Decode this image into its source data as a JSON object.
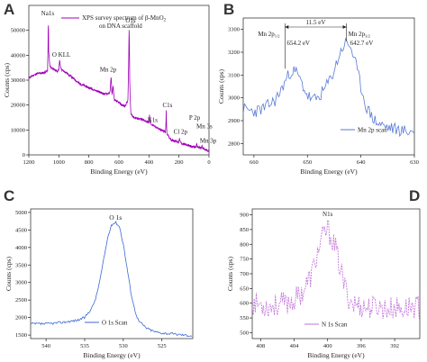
{
  "panels": [
    {
      "id": "A",
      "label": "A"
    },
    {
      "id": "B",
      "label": "B"
    },
    {
      "id": "C",
      "label": "C"
    },
    {
      "id": "D",
      "label": "D"
    }
  ],
  "chart_data": [
    {
      "id": "A",
      "type": "line",
      "title": "XPS survey spectrum of β-MnO2 on DNA scaffold",
      "legend": {
        "text": "XPS survey spectrum of β-MnO",
        "sub": "2",
        "line2": "on DNA scaffold",
        "placement": "top-center",
        "color": "#a000b8"
      },
      "xlabel": "Binding Energy (eV)",
      "ylabel": "Counts (cps)",
      "xlim": [
        1200,
        0
      ],
      "ylim": [
        0,
        60000
      ],
      "xreverse": true,
      "xticks": [
        1200,
        1000,
        800,
        600,
        400,
        200,
        0
      ],
      "yticks": [
        0,
        10000,
        20000,
        30000,
        40000,
        50000
      ],
      "color": "#a000b8",
      "series": [
        {
          "x": [
            1200,
            1150,
            1100,
            1085,
            1075,
            1072,
            1070,
            1068,
            1060,
            1040,
            1010,
            1000,
            995,
            990,
            980,
            950,
            920,
            900,
            860,
            820,
            780,
            740,
            700,
            680,
            660,
            655,
            652,
            650,
            648,
            645,
            642,
            640,
            630,
            600,
            580,
            560,
            540,
            535,
            532,
            530,
            528,
            525,
            520,
            500,
            470,
            440,
            420,
            400,
            398,
            396,
            394,
            392,
            380,
            350,
            320,
            300,
            290,
            287,
            285,
            283,
            280,
            270,
            250,
            220,
            200,
            199,
            197,
            195,
            180,
            150,
            120,
            90,
            84,
            82,
            80,
            70,
            60,
            50,
            49,
            47,
            45,
            40,
            30,
            20,
            10,
            0
          ],
          "y": [
            31000,
            32500,
            33000,
            33500,
            34000,
            45000,
            55000,
            42000,
            35500,
            34500,
            33500,
            34500,
            38000,
            35500,
            34000,
            33000,
            31500,
            30500,
            28500,
            27500,
            26500,
            25500,
            24500,
            24500,
            25000,
            29000,
            32000,
            29000,
            25000,
            24500,
            26000,
            28000,
            22000,
            21000,
            20000,
            19500,
            22000,
            38000,
            52000,
            42000,
            30000,
            22000,
            16500,
            15000,
            14500,
            14000,
            13500,
            13000,
            14500,
            16000,
            14500,
            13000,
            12000,
            11000,
            10000,
            9500,
            9000,
            12000,
            18000,
            12000,
            8500,
            7500,
            6000,
            5500,
            5000,
            6000,
            7000,
            5500,
            4500,
            4000,
            3500,
            3000,
            3800,
            4500,
            3500,
            3000,
            2800,
            2600,
            3400,
            4000,
            3000,
            2500,
            2200,
            2000,
            1800,
            1600
          ]
        }
      ],
      "annotations": [
        {
          "text": "Na1s",
          "x": 1070,
          "y": 55000
        },
        {
          "text": "O KLL",
          "x": 985,
          "y": 38000
        },
        {
          "text": "Mn 2p",
          "x": 655,
          "y": 32000
        },
        {
          "text": "O1s",
          "x": 532,
          "y": 52000
        },
        {
          "text": "C1s",
          "x": 285,
          "y": 18000
        },
        {
          "text": "N1s",
          "x": 398,
          "y": 16000
        },
        {
          "text": "Cl 2p",
          "x": 200,
          "y": 7500
        },
        {
          "text": "P 2p",
          "x": 133,
          "y": 12000
        },
        {
          "text": "Mn 3s",
          "x": 84,
          "y": 9500
        },
        {
          "text": "Mn 3p",
          "x": 49,
          "y": 4500
        }
      ]
    },
    {
      "id": "B",
      "type": "line",
      "title": "",
      "legend": {
        "text": "Mn 2p scan",
        "placement": "bottom-right",
        "color": "#5a7ad6"
      },
      "xlabel": "Binding Energy (eV)",
      "ylabel": "Counts (cps)",
      "xlim": [
        662,
        630
      ],
      "ylim": [
        2750,
        3350
      ],
      "xreverse": true,
      "xticks": [
        660,
        650,
        640,
        630
      ],
      "yticks": [
        2800,
        2900,
        3000,
        3100,
        3200,
        3300
      ],
      "color": "#5a7ad6",
      "series": [
        {
          "x": [
            662,
            660,
            658,
            656,
            655,
            654,
            653,
            652,
            651,
            650,
            649,
            648,
            647,
            646,
            645,
            644,
            643,
            642,
            641,
            640,
            639,
            638,
            637,
            636,
            635,
            634,
            633,
            632,
            631,
            630
          ],
          "y": [
            2950,
            2940,
            2955,
            2990,
            3030,
            3080,
            3120,
            3110,
            3060,
            3010,
            2990,
            3000,
            3030,
            3070,
            3120,
            3190,
            3240,
            3230,
            3150,
            3050,
            2960,
            2920,
            2890,
            2880,
            2870,
            2865,
            2860,
            2855,
            2852,
            2850
          ]
        }
      ],
      "peaks": [
        {
          "name": "Mn 2p",
          "sub": "1/2",
          "be": "654.2 eV",
          "x": 654.2,
          "y": 3120
        },
        {
          "name": "Mn 2p",
          "sub": "3/2",
          "be": "642.7 eV",
          "x": 642.7,
          "y": 3240
        }
      ],
      "separation": "11.5 eV"
    },
    {
      "id": "C",
      "type": "line",
      "title": "O 1s",
      "legend": {
        "text": "O 1s Scan",
        "placement": "bottom-left",
        "color": "#3a6ad4"
      },
      "xlabel": "Binding Energy (eV)",
      "ylabel": "Counts (cps)",
      "xlim": [
        542,
        521
      ],
      "ylim": [
        1400,
        5100
      ],
      "xreverse": true,
      "xticks": [
        540,
        535,
        530,
        525
      ],
      "yticks": [
        1500,
        2000,
        2500,
        3000,
        3500,
        4000,
        4500,
        5000
      ],
      "color": "#3a6ad4",
      "series": [
        {
          "x": [
            542,
            540,
            538,
            536,
            535,
            534,
            533.5,
            533,
            532.5,
            532,
            531.5,
            531,
            530.5,
            530,
            529.5,
            529,
            528.5,
            528,
            527,
            526,
            525,
            524,
            523,
            522,
            521
          ],
          "y": [
            1820,
            1820,
            1860,
            1920,
            2000,
            2300,
            2600,
            3100,
            3700,
            4300,
            4650,
            4720,
            4600,
            4100,
            3400,
            2700,
            2200,
            1900,
            1700,
            1600,
            1560,
            1540,
            1520,
            1500,
            1480
          ]
        }
      ]
    },
    {
      "id": "D",
      "type": "line",
      "title": "N1s",
      "legend": {
        "text": "N 1s Scan",
        "placement": "bottom-left",
        "color": "#c070d8"
      },
      "xlabel": "Binding Energy (eV)",
      "ylabel": "Counts (cps)",
      "xlim": [
        409,
        389
      ],
      "ylim": [
        480,
        920
      ],
      "xreverse": true,
      "xticks": [
        408,
        404,
        400,
        396,
        392
      ],
      "yticks": [
        500,
        550,
        600,
        650,
        700,
        750,
        800,
        850,
        900
      ],
      "color": "#c070d8",
      "series": [
        {
          "x": [
            409,
            407,
            405,
            404,
            403,
            402,
            401.5,
            401,
            400.5,
            400,
            399.5,
            399,
            398.5,
            398,
            397.5,
            397,
            396,
            395,
            394,
            393,
            392,
            391,
            390,
            389
          ],
          "y": [
            600,
            590,
            600,
            610,
            640,
            690,
            740,
            790,
            830,
            850,
            820,
            780,
            720,
            660,
            620,
            600,
            590,
            585,
            590,
            580,
            585,
            580,
            590,
            585
          ]
        }
      ]
    }
  ]
}
